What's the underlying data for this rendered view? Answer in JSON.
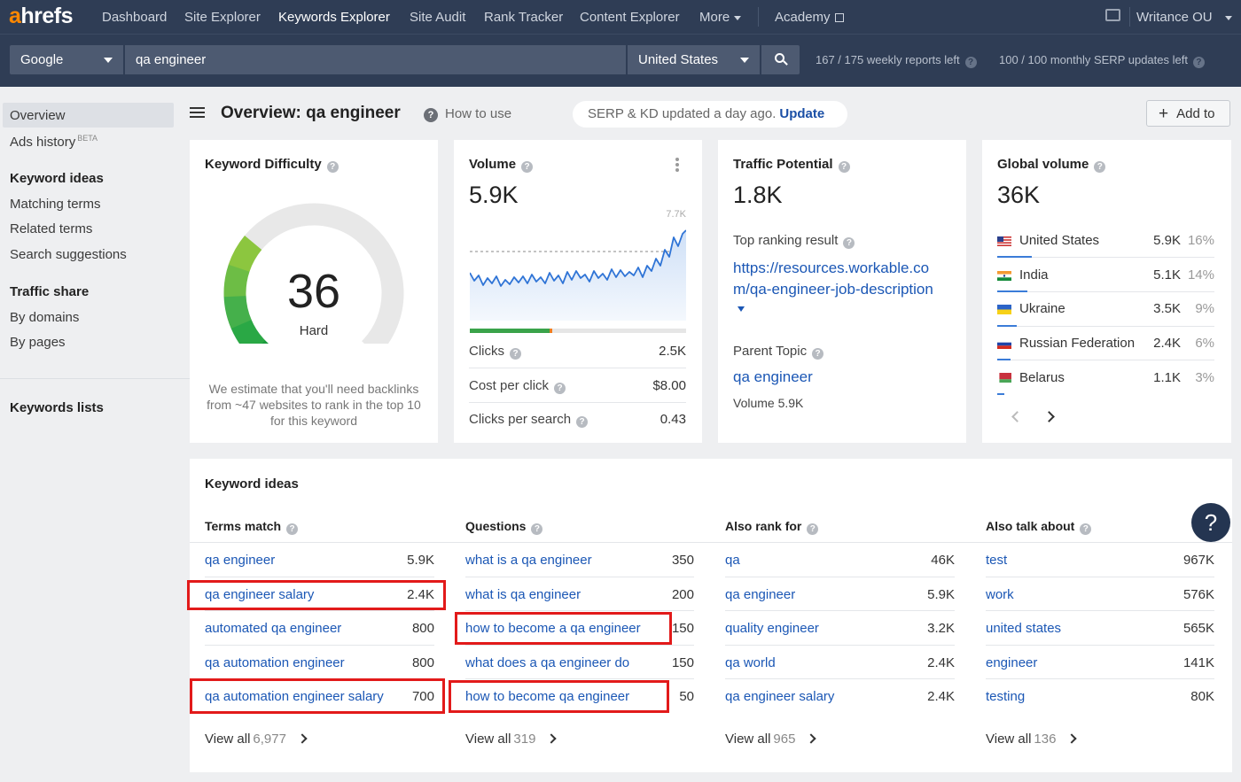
{
  "nav": {
    "logo_a": "a",
    "logo_rest": "hrefs",
    "items": [
      "Dashboard",
      "Site Explorer",
      "Keywords Explorer",
      "Site Audit",
      "Rank Tracker",
      "Content Explorer",
      "More",
      "Academy"
    ],
    "account": "Writance OU"
  },
  "search": {
    "engine": "Google",
    "query": "qa engineer",
    "country": "United States",
    "weekly_quota": "167 / 175 weekly reports left",
    "serp_quota": "100 / 100 monthly SERP updates left"
  },
  "sidebar": {
    "overview": "Overview",
    "ads_history": "Ads history",
    "beta": "BETA",
    "keyword_ideas_head": "Keyword ideas",
    "matching_terms": "Matching terms",
    "related_terms": "Related terms",
    "search_suggestions": "Search suggestions",
    "traffic_share_head": "Traffic share",
    "by_domains": "By domains",
    "by_pages": "By pages",
    "keywords_lists": "Keywords lists"
  },
  "header": {
    "title": "Overview: qa engineer",
    "how_to": "How to use",
    "serp_status": "SERP & KD updated a day ago.",
    "update": "Update",
    "add_to": "Add to"
  },
  "kd": {
    "title": "Keyword Difficulty",
    "value": "36",
    "score": 36,
    "label": "Hard",
    "note": "We estimate that you'll need backlinks from ~47 websites to rank in the top 10 for this keyword"
  },
  "volume": {
    "title": "Volume",
    "value": "5.9K",
    "chart_max": "7.7K",
    "clicks_ratio": 0.37,
    "rows": [
      {
        "label": "Clicks",
        "value": "2.5K"
      },
      {
        "label": "Cost per click",
        "value": "$8.00"
      },
      {
        "label": "Clicks per search",
        "value": "0.43"
      }
    ]
  },
  "traffic": {
    "title": "Traffic Potential",
    "value": "1.8K",
    "top_result_label": "Top ranking result",
    "top_result_url_1": "https://resources.workable.co",
    "top_result_url_2": "m/qa-engineer-job-description",
    "parent_topic_label": "Parent Topic",
    "parent_topic": "qa engineer",
    "parent_volume": "Volume 5.9K"
  },
  "global": {
    "title": "Global volume",
    "value": "36K",
    "countries": [
      {
        "name": "United States",
        "value": "5.9K",
        "pct": "16%",
        "share": 0.16
      },
      {
        "name": "India",
        "value": "5.1K",
        "pct": "14%",
        "share": 0.14
      },
      {
        "name": "Ukraine",
        "value": "3.5K",
        "pct": "9%",
        "share": 0.09
      },
      {
        "name": "Russian Federation",
        "value": "2.4K",
        "pct": "6%",
        "share": 0.06
      },
      {
        "name": "Belarus",
        "value": "1.1K",
        "pct": "3%",
        "share": 0.03
      }
    ]
  },
  "ideas": {
    "title": "Keyword ideas",
    "columns": [
      {
        "head": "Terms match",
        "rows": [
          {
            "term": "qa engineer",
            "value": "5.9K"
          },
          {
            "term": "qa engineer salary",
            "value": "2.4K"
          },
          {
            "term": "automated qa engineer",
            "value": "800"
          },
          {
            "term": "qa automation engineer",
            "value": "800"
          },
          {
            "term": "qa automation engineer salary",
            "value": "700"
          }
        ],
        "view_all": "View all",
        "count": "6,977"
      },
      {
        "head": "Questions",
        "rows": [
          {
            "term": "what is a qa engineer",
            "value": "350"
          },
          {
            "term": "what is qa engineer",
            "value": "200"
          },
          {
            "term": "how to become a qa engineer",
            "value": "150"
          },
          {
            "term": "what does a qa engineer do",
            "value": "150"
          },
          {
            "term": "how to become qa engineer",
            "value": "50"
          }
        ],
        "view_all": "View all",
        "count": "319"
      },
      {
        "head": "Also rank for",
        "rows": [
          {
            "term": "qa",
            "value": "46K"
          },
          {
            "term": "qa engineer",
            "value": "5.9K"
          },
          {
            "term": "quality engineer",
            "value": "3.2K"
          },
          {
            "term": "qa world",
            "value": "2.4K"
          },
          {
            "term": "qa engineer salary",
            "value": "2.4K"
          }
        ],
        "view_all": "View all",
        "count": "965"
      },
      {
        "head": "Also talk about",
        "rows": [
          {
            "term": "test",
            "value": "967K"
          },
          {
            "term": "work",
            "value": "576K"
          },
          {
            "term": "united states",
            "value": "565K"
          },
          {
            "term": "engineer",
            "value": "141K"
          },
          {
            "term": "testing",
            "value": "80K"
          }
        ],
        "view_all": "View all",
        "count": "136"
      }
    ]
  },
  "help": "?",
  "colors": {
    "nav_bg": "#2f3d55",
    "accent_orange": "#ff8800",
    "link": "#1b57b5",
    "highlight": "#e21a1a",
    "kd_green_dark": "#1a9a3c",
    "kd_green_light": "#8cc63f"
  }
}
